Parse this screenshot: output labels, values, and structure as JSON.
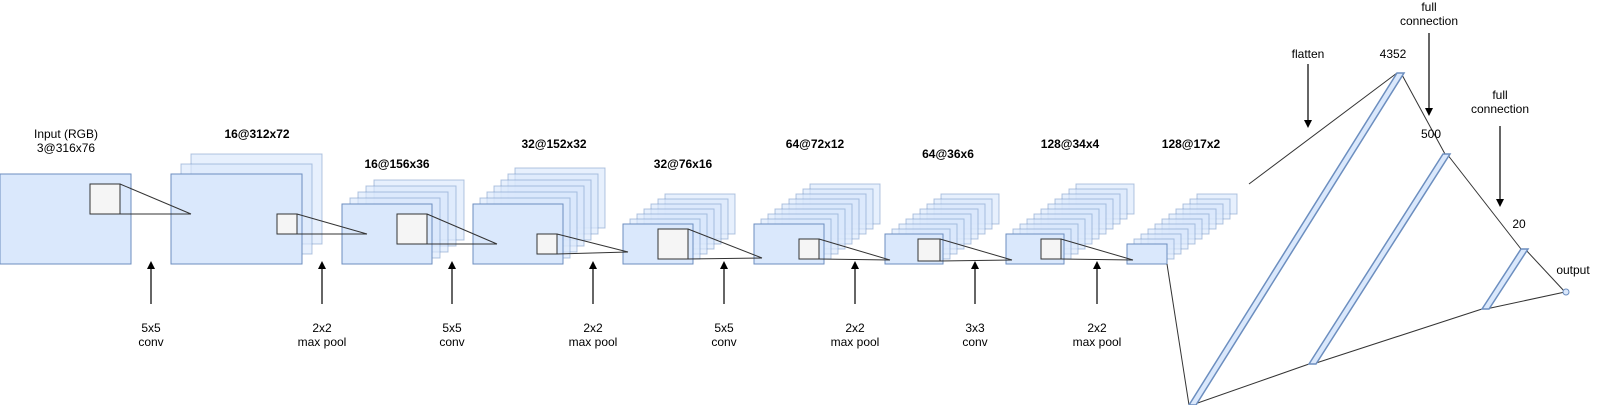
{
  "diagram": {
    "colors": {
      "layer_fill": "#dae8fc",
      "layer_stroke": "#6c8ebf",
      "kernel_fill": "#f5f5f5",
      "kernel_stroke": "#333333",
      "line": "#333333",
      "text": "#000000"
    },
    "layer_labels": [
      {
        "line1": "Input (RGB)",
        "line2": "3@316x76"
      },
      {
        "line1": "16@312x72"
      },
      {
        "line1": "16@156x36"
      },
      {
        "line1": "32@152x32"
      },
      {
        "line1": "32@76x16"
      },
      {
        "line1": "64@72x12"
      },
      {
        "line1": "64@36x6"
      },
      {
        "line1": "128@34x4"
      },
      {
        "line1": "128@17x2"
      }
    ],
    "operations": [
      {
        "line1": "5x5",
        "line2": "conv"
      },
      {
        "line1": "2x2",
        "line2": "max pool"
      },
      {
        "line1": "5x5",
        "line2": "conv"
      },
      {
        "line1": "2x2",
        "line2": "max pool"
      },
      {
        "line1": "5x5",
        "line2": "conv"
      },
      {
        "line1": "2x2",
        "line2": "max pool"
      },
      {
        "line1": "3x3",
        "line2": "conv"
      },
      {
        "line1": "2x2",
        "line2": "max pool"
      }
    ],
    "dense_labels": {
      "flatten": "flatten",
      "fc1_line1": "full",
      "fc1_line2": "connection",
      "fc2_line1": "full",
      "fc2_line2": "connection",
      "size_4352": "4352",
      "size_500": "500",
      "size_20": "20",
      "output": "output"
    }
  }
}
